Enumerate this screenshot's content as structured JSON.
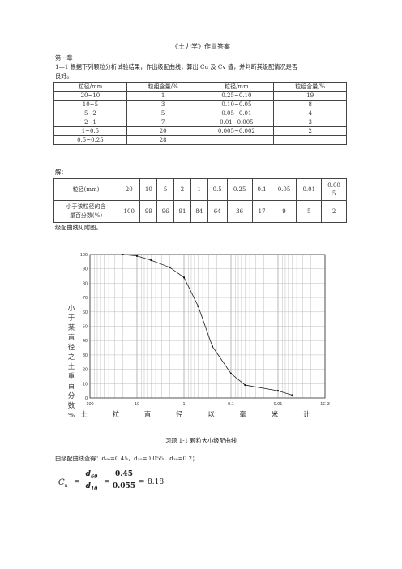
{
  "doc": {
    "title": "《土力学》作业答案",
    "chapter": "第一章",
    "question_line1": "1—1 根据下列颗粒分析试验结果，作出级配曲线，算出 Cu 及 Cv 值，并判断其级配情况是否",
    "question_line2": "良好。",
    "table1": {
      "headers": [
        "粒径/mm",
        "粒组含量/%",
        "粒径/mm",
        "粒组含量/%"
      ],
      "rows": [
        [
          "20~10",
          "1",
          "0.25~0.10",
          "19"
        ],
        [
          "10~5",
          "3",
          "0.10~0.05",
          "8"
        ],
        [
          "5~2",
          "5",
          "0.05~0.01",
          "4"
        ],
        [
          "2~1",
          "7",
          "0.01~0.005",
          "3"
        ],
        [
          "1~0.5",
          "20",
          "0.005~0.002",
          "2"
        ],
        [
          "0.5~0.25",
          "28",
          "",
          ""
        ]
      ]
    },
    "answer_label": "解：",
    "table2": {
      "row1_label": "粒径(mm)",
      "row1_values": [
        "20",
        "10",
        "5",
        "2",
        "1",
        "0.5",
        "0.25",
        "0.1",
        "0.05",
        "0.01"
      ],
      "row1_last_a": "0.00",
      "row1_last_b": "5",
      "row2_label_a": "小于该粒径的含",
      "row2_label_b": "量百分数(%)",
      "row2_values": [
        "100",
        "99",
        "96",
        "91",
        "84",
        "64",
        "36",
        "17",
        "9",
        "5",
        "2"
      ]
    },
    "curve_note": "级配曲线见附图。",
    "caption": "习题 1-1   颗粒大小级配曲线",
    "d_values": "由级配曲线查得：d₆₀=0.45，d₁₀=0.055，d₃₀=0.2；",
    "formula": {
      "lhs": "C",
      "lhs_sub": "u",
      "num1": "d",
      "num1_sub": "60",
      "den1": "d",
      "den1_sub": "10",
      "num2": "0.45",
      "den2": "0.055",
      "result": "8.18"
    }
  },
  "chart_data": {
    "type": "line",
    "x_scale": "log",
    "x_reversed": true,
    "xlim": [
      0.001,
      100
    ],
    "ylim": [
      0,
      100
    ],
    "ylabel": "小于某直径之土重百分数%",
    "xlabel": "土 粒 直 径 以 毫 米 计",
    "x_tick_labels": [
      "100",
      "10",
      "1",
      "0.1",
      "0.01",
      "1E-3"
    ],
    "x_tick_values": [
      100,
      10,
      1,
      0.1,
      0.01,
      0.001
    ],
    "y_tick_labels": [
      "0",
      "10",
      "20",
      "30",
      "40",
      "50",
      "60",
      "70",
      "80",
      "90",
      "100"
    ],
    "y_tick_values": [
      0,
      10,
      20,
      30,
      40,
      50,
      60,
      70,
      80,
      90,
      100
    ],
    "grid": true,
    "series": [
      {
        "x": [
          20,
          10,
          5,
          2,
          1,
          0.5,
          0.25,
          0.1,
          0.05,
          0.01,
          0.005
        ],
        "y": [
          100,
          99,
          96,
          91,
          84,
          64,
          36,
          17,
          9,
          5,
          2
        ]
      }
    ]
  }
}
